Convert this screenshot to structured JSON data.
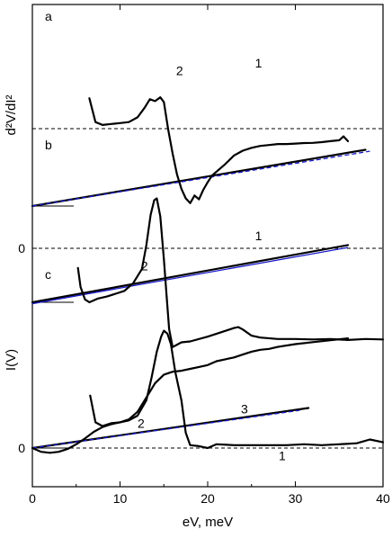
{
  "chart_data": {
    "type": "line",
    "xlabel": "eV, meV",
    "ylabel_top": "d²V/dI²",
    "ylabel_bottom": "I(V)",
    "xlim": [
      0,
      40
    ],
    "x_ticks": [
      "0",
      "10",
      "20",
      "30",
      "40"
    ],
    "y_ticks": [
      "0",
      "0"
    ],
    "panels": [
      {
        "panel": "a",
        "labels": [
          {
            "text": "1",
            "x": 25.8,
            "off": 15.0
          },
          {
            "text": "2",
            "x": 16.8,
            "off": 14.2
          }
        ],
        "series": [
          {
            "name": "1",
            "style": "solid",
            "x": [
              0,
              38
            ],
            "y": [
              0,
              5.9
            ]
          },
          {
            "name": "",
            "style": "blue-dash",
            "x": [
              0,
              38.5
            ],
            "y": [
              0,
              5.75
            ]
          },
          {
            "name": "2",
            "style": "solid",
            "x": [
              6.5,
              7.2,
              8.0,
              9.0,
              10.0,
              11.0,
              12.0,
              12.8,
              13.4,
              14.0,
              14.6,
              15.0,
              15.5,
              16.0,
              16.5,
              17.0,
              17.5,
              18.0,
              18.5,
              19.0,
              19.5,
              20.0,
              20.5,
              21.0,
              22.0,
              23.0,
              24.0,
              25.0,
              26.0,
              27.0,
              28.0,
              29.0,
              30.0,
              31.0,
              32.0,
              33.0,
              34.0,
              35.0,
              35.5,
              36.0
            ],
            "y": [
              11.3,
              8.8,
              8.5,
              8.6,
              8.7,
              8.8,
              9.3,
              10.3,
              11.2,
              11.0,
              11.4,
              10.9,
              8.0,
              5.5,
              3.3,
              1.8,
              0.8,
              0.3,
              1.1,
              0.7,
              1.7,
              2.5,
              3.2,
              3.6,
              4.4,
              5.3,
              5.8,
              6.1,
              6.3,
              6.4,
              6.5,
              6.5,
              6.55,
              6.6,
              6.62,
              6.7,
              6.8,
              6.9,
              7.3,
              6.8
            ]
          }
        ]
      },
      {
        "panel": "b",
        "labels": [
          {
            "text": "1",
            "x": 25.8,
            "off": 7.0
          },
          {
            "text": "2",
            "x": 12.8,
            "off": 3.8
          }
        ],
        "series": [
          {
            "name": "1",
            "style": "solid",
            "x": [
              0,
              36
            ],
            "y": [
              0,
              6.0
            ]
          },
          {
            "name": "",
            "style": "blue",
            "x": [
              0,
              36
            ],
            "y": [
              -0.15,
              5.75
            ]
          },
          {
            "name": "2",
            "style": "solid",
            "x": [
              5.2,
              5.5,
              6.0,
              6.5,
              7.5,
              8.5,
              9.5,
              10.5,
              11.5,
              12.5,
              13.0,
              13.5,
              13.9,
              14.2,
              14.6,
              15.0,
              15.3,
              15.6,
              16.0,
              17.0,
              18.0,
              20.0,
              22.0,
              23.0,
              23.5,
              24.0,
              25.0,
              26.0,
              28.0,
              30.0,
              32.0,
              34.0,
              36.0,
              38.0,
              40.0
            ],
            "y": [
              3.6,
              1.6,
              0.3,
              0.0,
              0.4,
              0.6,
              0.9,
              1.2,
              2.0,
              3.5,
              6.0,
              9.2,
              10.7,
              10.9,
              9.0,
              4.5,
              0.8,
              -2.8,
              -4.7,
              -4.2,
              -4.1,
              -3.6,
              -3.0,
              -2.7,
              -2.6,
              -2.85,
              -3.5,
              -3.7,
              -3.85,
              -3.85,
              -3.9,
              -3.85,
              -3.95,
              -3.85,
              -3.9
            ]
          }
        ]
      },
      {
        "panel": "c",
        "labels": [
          {
            "text": "1",
            "x": 28.5,
            "off": -0.8
          },
          {
            "text": "2",
            "x": 12.4,
            "off": 2.6
          },
          {
            "text": "3",
            "x": 24.2,
            "off": 4.1
          }
        ],
        "series": [
          {
            "name": "1",
            "style": "solid",
            "x": [
              0,
              31.5
            ],
            "y": [
              0,
              4.2
            ]
          },
          {
            "name": "",
            "style": "blue-dash",
            "x": [
              0,
              30.5
            ],
            "y": [
              0,
              3.95
            ]
          },
          {
            "name": "2",
            "style": "solid",
            "x": [
              6.6,
              7.2,
              8.0,
              9.0,
              10.0,
              11.0,
              12.0,
              13.0,
              13.6,
              14.2,
              14.7,
              15.0,
              15.4,
              15.8,
              16.3,
              17.0,
              17.5,
              18.0,
              19.0,
              20.0,
              21.0,
              23.0,
              25.0,
              27.0,
              29.0,
              31.0,
              33.0,
              35.0,
              37.0,
              38.5,
              40.0
            ],
            "y": [
              5.5,
              2.7,
              2.3,
              2.6,
              2.7,
              2.9,
              3.4,
              5.0,
              7.4,
              10.1,
              11.7,
              12.3,
              12.0,
              10.9,
              8.0,
              5.0,
              1.6,
              0.3,
              0.2,
              0.0,
              0.4,
              0.3,
              0.3,
              0.3,
              0.3,
              0.4,
              0.3,
              0.4,
              0.5,
              0.9,
              0.6
            ]
          },
          {
            "name": "3",
            "style": "solid",
            "x": [
              0,
              1.0,
              2.0,
              3.0,
              4.0,
              5.0,
              6.0,
              7.0,
              8.0,
              9.0,
              10.0,
              11.0,
              12.0,
              13.0,
              14.0,
              15.0,
              16.0,
              17.0,
              18.0,
              19.0,
              20.0,
              21.0,
              22.0,
              23.0,
              24.0,
              25.0,
              26.0,
              27.0,
              28.0,
              30.0,
              32.0,
              34.0,
              36.0
            ],
            "y": [
              0,
              -0.4,
              -0.5,
              -0.4,
              -0.1,
              0.4,
              1.0,
              1.7,
              2.2,
              2.5,
              2.7,
              3.0,
              3.8,
              5.3,
              6.8,
              7.7,
              8.0,
              8.1,
              8.3,
              8.5,
              8.7,
              9.1,
              9.3,
              9.5,
              9.8,
              10.1,
              10.3,
              10.4,
              10.6,
              10.9,
              11.1,
              11.3,
              11.5
            ]
          }
        ]
      }
    ]
  }
}
